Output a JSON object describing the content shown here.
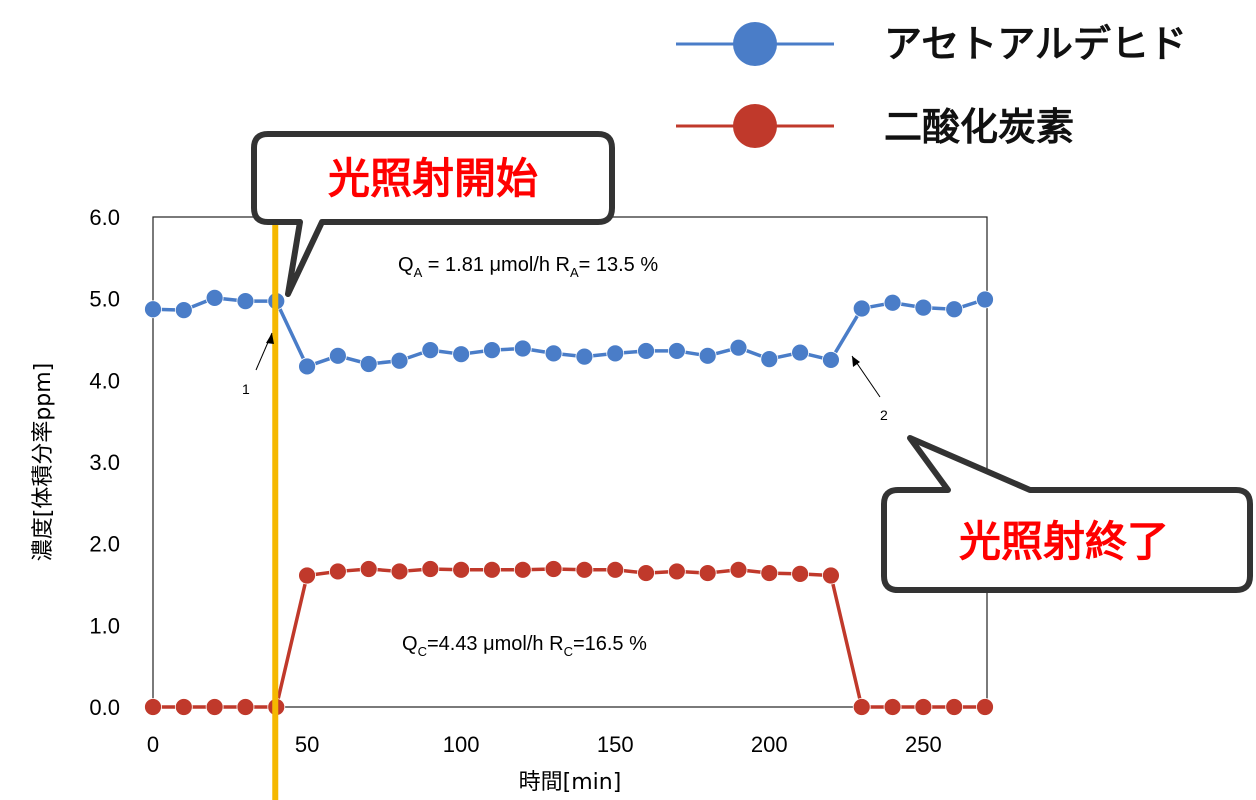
{
  "legend": {
    "series_a": "アセトアルデヒド",
    "series_c": "二酸化炭素"
  },
  "callouts": {
    "start": "光照射開始",
    "end": "光照射終了"
  },
  "annotations": {
    "acetaldehyde": {
      "q_prefix": "Q",
      "q_sub": "A",
      "q_value": " = 1.81 μmol/h  ",
      "r_prefix": "R",
      "r_sub": "A",
      "r_value": "= 13.5 %"
    },
    "co2": {
      "q_prefix": "Q",
      "q_sub": "C",
      "q_value": "=4.43 μmol/h  ",
      "r_prefix": "R",
      "r_sub": "C",
      "r_value": "=16.5 %"
    },
    "marker_1": "1",
    "marker_2": "2"
  },
  "colors": {
    "acetaldehyde": "#4a7dc8",
    "acetaldehyde_fill": "#4a7dc8",
    "co2": "#c0392b",
    "co2_fill": "#c0392b",
    "light_on_line": "#f5b800",
    "callout_text": "#ff0000"
  },
  "chart_data": {
    "type": "line",
    "xlabel": "時間[min]",
    "ylabel": "濃度[体積分率ppm]",
    "xlim": [
      0,
      275
    ],
    "ylim": [
      0,
      6
    ],
    "xticks": [
      "0",
      "50",
      "100",
      "150",
      "200",
      "250"
    ],
    "yticks": [
      "0.0",
      "1.0",
      "2.0",
      "3.0",
      "4.0",
      "5.0",
      "6.0"
    ],
    "light_on_at": 40,
    "light_off_at": 225,
    "x": [
      0,
      10,
      20,
      30,
      40,
      50,
      60,
      70,
      80,
      90,
      100,
      110,
      120,
      130,
      140,
      150,
      160,
      170,
      180,
      190,
      200,
      210,
      220,
      230,
      240,
      250,
      260,
      270
    ],
    "series": [
      {
        "name": "アセトアルデヒド",
        "values": [
          4.87,
          4.86,
          5.01,
          4.97,
          4.97,
          4.17,
          4.3,
          4.2,
          4.24,
          4.37,
          4.32,
          4.37,
          4.39,
          4.33,
          4.29,
          4.33,
          4.36,
          4.36,
          4.3,
          4.4,
          4.26,
          4.34,
          4.25,
          4.88,
          4.95,
          4.89,
          4.87,
          4.99
        ]
      },
      {
        "name": "二酸化炭素",
        "values": [
          0,
          0,
          0,
          0,
          0,
          1.61,
          1.66,
          1.69,
          1.66,
          1.69,
          1.68,
          1.68,
          1.68,
          1.69,
          1.68,
          1.68,
          1.64,
          1.66,
          1.64,
          1.68,
          1.64,
          1.63,
          1.61,
          0,
          0,
          0,
          0,
          0
        ]
      }
    ]
  }
}
